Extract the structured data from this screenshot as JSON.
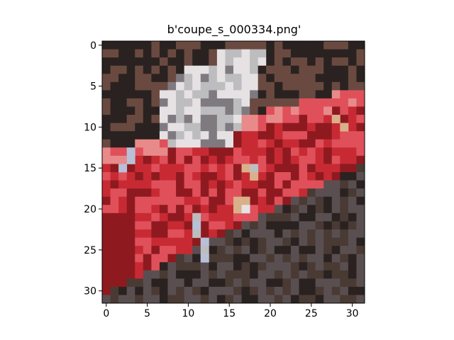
{
  "figure": {
    "title": "b'coupe_s_000334.png'",
    "x_axis": {
      "range": [
        -0.5,
        31.5
      ],
      "ticks": [
        0,
        5,
        10,
        15,
        20,
        25,
        30
      ],
      "tick_labels": [
        "0",
        "5",
        "10",
        "15",
        "20",
        "25",
        "30"
      ]
    },
    "y_axis": {
      "range": [
        -0.5,
        31.5
      ],
      "inverted": true,
      "ticks": [
        0,
        5,
        10,
        15,
        20,
        25,
        30
      ],
      "tick_labels": [
        "0",
        "5",
        "10",
        "15",
        "20",
        "25",
        "30"
      ]
    },
    "image": {
      "grid_size": [
        32,
        32
      ],
      "subject": "low-resolution photo of a red coupe car with a silver roof",
      "palette": {
        "dark": "#2a2220",
        "deep_red": "#8e1a20",
        "red": "#c82a33",
        "light_red": "#e0505a",
        "pink": "#e88a8a",
        "silver": "#bdbcbf",
        "light_silver": "#e6e2e4",
        "gray": "#7f7a80",
        "brown": "#6a4a40",
        "tan": "#d9b089",
        "light_blue": "#b8c0d8",
        "shadow_gray": "#5a4f50",
        "dark_brown": "#4a3a34"
      }
    }
  }
}
